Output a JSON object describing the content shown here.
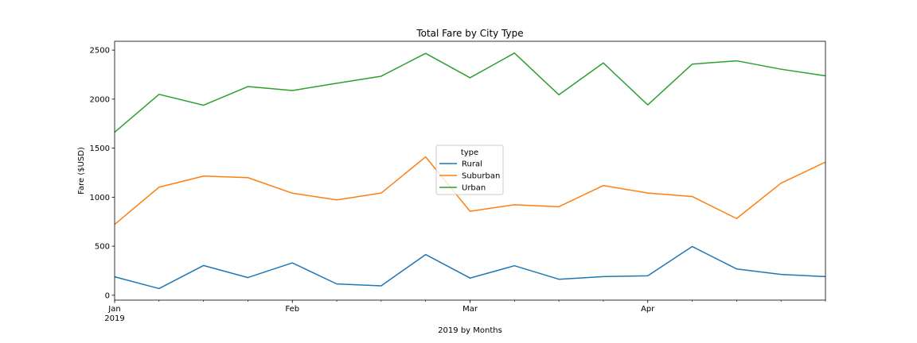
{
  "chart_data": {
    "type": "line",
    "title": "Total Fare by City Type",
    "xlabel": "2019 by Months",
    "ylabel": "Fare ($USD)",
    "x": [
      "2019-01-06",
      "2019-01-13",
      "2019-01-20",
      "2019-01-27",
      "2019-02-03",
      "2019-02-10",
      "2019-02-17",
      "2019-02-24",
      "2019-03-03",
      "2019-03-10",
      "2019-03-17",
      "2019-03-24",
      "2019-03-31",
      "2019-04-07",
      "2019-04-14",
      "2019-04-21",
      "2019-04-28"
    ],
    "x_tick_labels": [
      {
        "date": "2019-01-06",
        "label": "Jan",
        "sublabel": "2019"
      },
      {
        "date": "2019-02-03",
        "label": "Feb",
        "sublabel": ""
      },
      {
        "date": "2019-03-03",
        "label": "Mar",
        "sublabel": ""
      },
      {
        "date": "2019-03-31",
        "label": "Apr",
        "sublabel": ""
      }
    ],
    "xlim": [
      "2019-01-06",
      "2019-04-28"
    ],
    "ylim": [
      -50,
      2590
    ],
    "y_ticks": [
      0,
      500,
      1000,
      1500,
      2000,
      2500
    ],
    "grid": false,
    "legend": {
      "title": "type",
      "placement": "center"
    },
    "series": [
      {
        "name": "Rural",
        "color": "#1f77b4",
        "values": [
          188,
          68,
          303,
          180,
          330,
          115,
          96,
          415,
          175,
          301,
          163,
          190,
          198,
          497,
          268,
          212,
          190
        ]
      },
      {
        "name": "Suburban",
        "color": "#ff7f0e",
        "values": [
          722,
          1102,
          1215,
          1199,
          1041,
          972,
          1042,
          1411,
          856,
          923,
          903,
          1119,
          1042,
          1007,
          782,
          1143,
          1358
        ]
      },
      {
        "name": "Urban",
        "color": "#2ca02c",
        "values": [
          1662,
          2049,
          1938,
          2128,
          2088,
          2162,
          2234,
          2467,
          2218,
          2470,
          2044,
          2369,
          1941,
          2357,
          2391,
          2305,
          2238
        ]
      }
    ]
  }
}
